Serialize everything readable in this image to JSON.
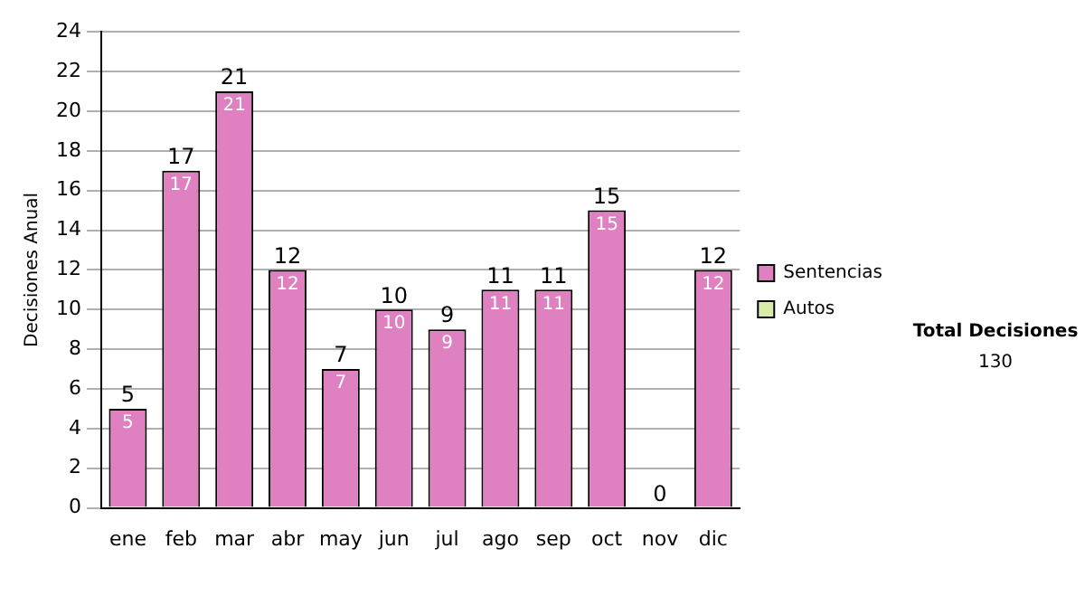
{
  "chart_data": {
    "type": "bar",
    "ylabel": "Decisiones Anual",
    "categories": [
      "ene",
      "feb",
      "mar",
      "abr",
      "may",
      "jun",
      "jul",
      "ago",
      "sep",
      "oct",
      "nov",
      "dic"
    ],
    "series": [
      {
        "name": "Sentencias",
        "color": "#df80c0",
        "values": [
          5,
          17,
          21,
          12,
          7,
          10,
          9,
          11,
          11,
          15,
          0,
          12
        ],
        "value_labels": [
          "5",
          "17",
          "21",
          "12",
          "7",
          "10",
          "9",
          "11",
          "11",
          "15",
          null,
          "12"
        ]
      },
      {
        "name": "Autos",
        "color": "#d8eca8",
        "values": [
          0,
          0,
          0,
          0,
          0,
          0,
          0,
          0,
          0,
          0,
          0,
          0
        ]
      }
    ],
    "stacked": true,
    "totals": [
      "5",
      "17",
      "21",
      "12",
      "7",
      "10",
      "9",
      "11",
      "11",
      "15",
      "0",
      "12"
    ],
    "ylim": [
      0,
      24
    ],
    "yticks": [
      0,
      2,
      4,
      6,
      8,
      10,
      12,
      14,
      16,
      18,
      20,
      22,
      24
    ],
    "grid": "y",
    "legend": "right",
    "annotations": [
      "Total Decisiones",
      "130"
    ]
  }
}
